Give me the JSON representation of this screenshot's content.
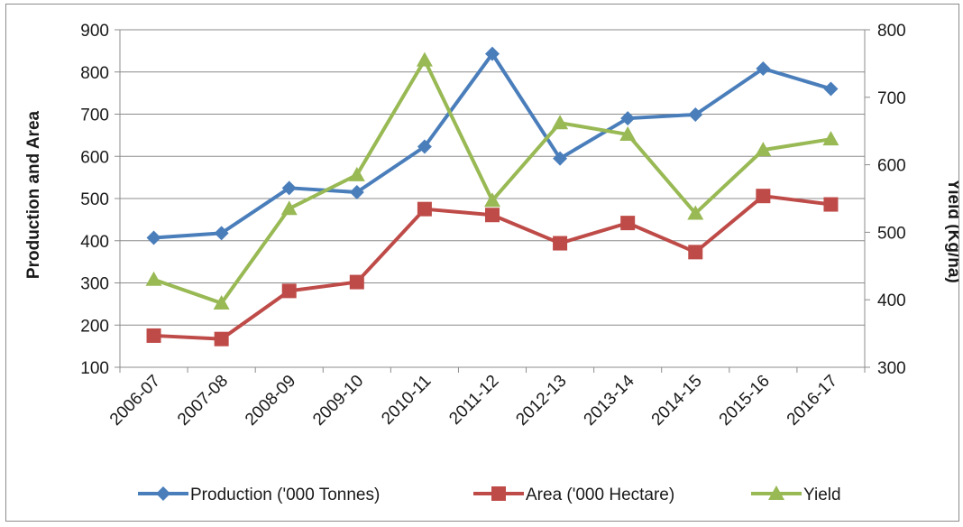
{
  "chart_data": {
    "type": "line",
    "categories": [
      "2006-07",
      "2007-08",
      "2008-09",
      "2009-10",
      "2010-11",
      "2011-12",
      "2012-13",
      "2013-14",
      "2014-15",
      "2015-16",
      "2016-17"
    ],
    "y_left": {
      "label": "Production and Area",
      "min": 100,
      "max": 900,
      "ticks": [
        "100",
        "200",
        "300",
        "400",
        "500",
        "600",
        "700",
        "800",
        "900"
      ]
    },
    "y_right": {
      "label": "Yield (Kg/ha)",
      "min": 300,
      "max": 800,
      "ticks": [
        "300",
        "400",
        "500",
        "600",
        "700",
        "800"
      ]
    },
    "grid": true,
    "legend_position": "bottom",
    "series": [
      {
        "name": "Production ('000 Tonnes)",
        "axis": "left",
        "color": "#4a7ebb",
        "marker": "diamond",
        "values": [
          407,
          418,
          525,
          515,
          623,
          843,
          595,
          690,
          699,
          808,
          760
        ]
      },
      {
        "name": "Area ('000 Hectare)",
        "axis": "left",
        "color": "#be4b48",
        "marker": "square",
        "values": [
          175,
          167,
          281,
          302,
          475,
          461,
          394,
          442,
          373,
          506,
          486
        ]
      },
      {
        "name": "Yield",
        "axis": "right",
        "color": "#98b954",
        "marker": "triangle",
        "values": [
          430,
          395,
          535,
          585,
          755,
          547,
          662,
          645,
          528,
          622,
          638
        ]
      }
    ]
  }
}
